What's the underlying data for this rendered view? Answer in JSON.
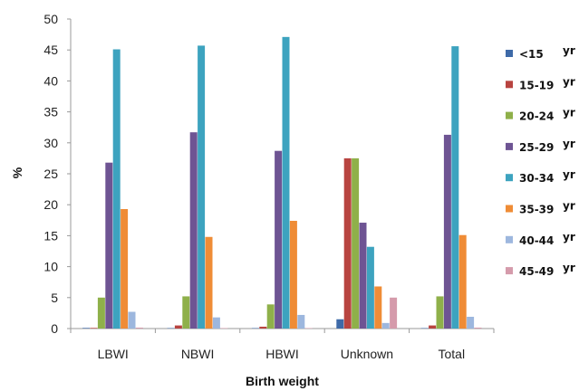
{
  "chart_data": {
    "type": "bar",
    "title": "",
    "xlabel": "Birth weight",
    "ylabel": "%",
    "ylim": [
      0,
      50
    ],
    "yticks": [
      0,
      5,
      10,
      15,
      20,
      25,
      30,
      35,
      40,
      45,
      50
    ],
    "grid": false,
    "legend_position": "right",
    "categories": [
      "LBWI",
      "NBWI",
      "HBWI",
      "Unknown",
      "Total"
    ],
    "series": [
      {
        "name": "<15",
        "unit": "yr",
        "color": "#3e6aa8",
        "values": [
          0.1,
          0.05,
          0.05,
          1.5,
          0.05
        ]
      },
      {
        "name": "15-19",
        "unit": "yr",
        "color": "#b84440",
        "values": [
          0.1,
          0.5,
          0.3,
          27.5,
          0.5
        ]
      },
      {
        "name": "20-24",
        "unit": "yr",
        "color": "#8fb04a",
        "values": [
          5.0,
          5.2,
          3.9,
          27.5,
          5.2
        ]
      },
      {
        "name": "25-29",
        "unit": "yr",
        "color": "#6e5493",
        "values": [
          26.8,
          31.7,
          28.7,
          17.1,
          31.3
        ]
      },
      {
        "name": "30-34",
        "unit": "yr",
        "color": "#3da3bf",
        "values": [
          45.1,
          45.7,
          47.1,
          13.2,
          45.6
        ]
      },
      {
        "name": "35-39",
        "unit": "yr",
        "color": "#ef8c36",
        "values": [
          19.3,
          14.8,
          17.4,
          6.8,
          15.1
        ]
      },
      {
        "name": "40-44",
        "unit": "yr",
        "color": "#9db7de",
        "values": [
          2.7,
          1.8,
          2.2,
          0.9,
          1.9
        ]
      },
      {
        "name": "45-49",
        "unit": "yr",
        "color": "#d59bab",
        "values": [
          0.15,
          0.05,
          0.05,
          5.0,
          0.15
        ]
      }
    ]
  }
}
